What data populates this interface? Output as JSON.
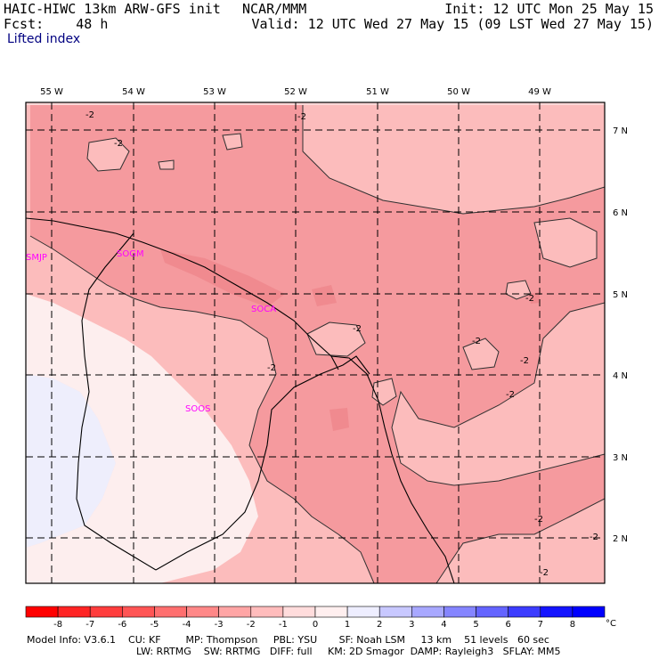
{
  "header": {
    "model": "HAIC-HIWC 13km ARW-GFS init",
    "org": "NCAR/MMM",
    "fcst_label": "Fcst:",
    "fcst_value": "48 h",
    "init": "Init: 12 UTC Mon 25 May 15",
    "valid": "Valid: 12 UTC Wed 27 May 15 (09 LST Wed 27 May 15)",
    "field": "Lifted index"
  },
  "lon_labels": [
    "55 W",
    "54 W",
    "53 W",
    "52 W",
    "51 W",
    "50 W",
    "49 W"
  ],
  "lat_labels": [
    "7 N",
    "6 N",
    "5 N",
    "4 N",
    "3 N",
    "2 N"
  ],
  "stations": [
    "SMJP",
    "SOGM",
    "SOCA",
    "SOOS"
  ],
  "contour_labels": [
    "-2",
    "-2",
    "-2",
    "-2",
    "-2",
    "-2",
    "-2",
    "-2",
    "-2",
    "-2",
    "-2",
    "-2"
  ],
  "colorbar": {
    "ticks": [
      "-8",
      "-7",
      "-6",
      "-5",
      "-4",
      "-3",
      "-2",
      "-1",
      "0",
      "1",
      "2",
      "3",
      "4",
      "5",
      "6",
      "7",
      "8"
    ],
    "unit": "°C",
    "colors": [
      "#ff0000",
      "#ff2424",
      "#ff3d3d",
      "#ff5555",
      "#ff6f6f",
      "#ff8888",
      "#ffa5a5",
      "#ffbcbc",
      "#ffdcdc",
      "#ffefef",
      "#eeeeff",
      "#c8c8ff",
      "#a8a8ff",
      "#8585ff",
      "#6464ff",
      "#3c3cff",
      "#1414ff",
      "#0000ff"
    ]
  },
  "footer": {
    "line1": "Model Info: V3.6.1    CU: KF        MP: Thompson     PBL: YSU       SF: Noah LSM     13 km    51 levels   60 sec",
    "line2": "LW: RRTMG    SW: RRTMG   DIFF: full     KM: 2D Smagor  DAMP: Rayleigh3   SFLAY: MM5"
  },
  "field_colors": {
    "band_m3_m2": "#f59a9e",
    "band_m2_m1": "#fcbcbc",
    "band_m1_0": "#fdd7d7",
    "band_0_1": "#fdeeee",
    "band_1_2": "#eeeefc"
  }
}
